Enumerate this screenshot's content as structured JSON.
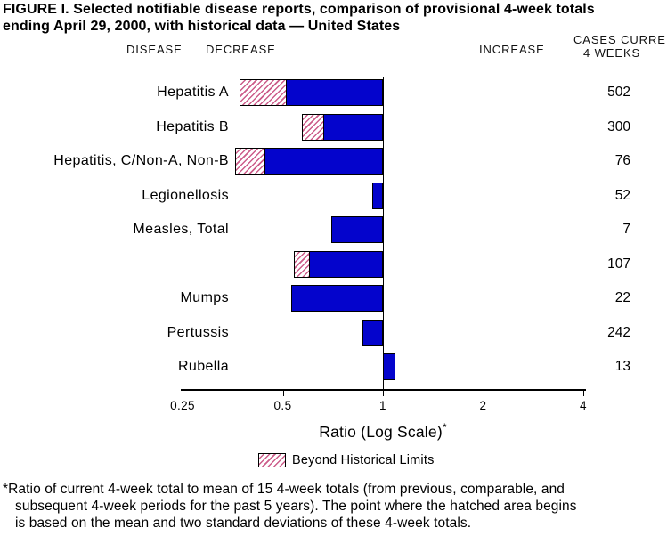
{
  "title": {
    "line1": "FIGURE I. Selected notifiable disease reports, comparison of provisional 4-week totals",
    "line2": "ending April 29, 2000, with historical data — United States"
  },
  "column_headers": {
    "disease": "DISEASE",
    "decrease": "DECREASE",
    "increase": "INCREASE",
    "cases_line1": "CASES CURRE",
    "cases_line2": "4 WEEKS"
  },
  "chart_data": {
    "type": "bar",
    "orientation": "horizontal",
    "x_scale": "log",
    "x_range": [
      0.25,
      4
    ],
    "baseline": 1,
    "x_ticks": [
      0.25,
      0.5,
      1,
      2,
      4
    ],
    "xlabel": "Ratio (Log Scale)",
    "xlabel_marker": "*",
    "legend": "Beyond Historical Limits",
    "bar_color": "#0404cc",
    "hatch_color": "#cc5c8a",
    "rows": [
      {
        "label": "Hepatitis A",
        "cases": "502",
        "ratio": 0.37,
        "beyond_limit_to": 0.51
      },
      {
        "label": "Hepatitis B",
        "cases": "300",
        "ratio": 0.57,
        "beyond_limit_to": 0.66
      },
      {
        "label": "Hepatitis, C/Non-A, Non-B",
        "cases": "76",
        "ratio": 0.36,
        "beyond_limit_to": 0.44
      },
      {
        "label": "Legionellosis",
        "cases": "52",
        "ratio": 0.93,
        "beyond_limit_to": null
      },
      {
        "label": "Measles, Total",
        "cases": "7",
        "ratio": 0.7,
        "beyond_limit_to": null
      },
      {
        "label": "",
        "cases": "107",
        "ratio": 0.54,
        "beyond_limit_to": 0.6
      },
      {
        "label": "Mumps",
        "cases": "22",
        "ratio": 0.53,
        "beyond_limit_to": null
      },
      {
        "label": "Pertussis",
        "cases": "242",
        "ratio": 0.87,
        "beyond_limit_to": null
      },
      {
        "label": "Rubella",
        "cases": "13",
        "ratio": 1.09,
        "beyond_limit_to": null
      }
    ]
  },
  "footnote": {
    "line1": "*Ratio of current 4-week total to mean of 15 4-week totals (from previous, comparable, and",
    "line2": "subsequent 4-week periods for the past 5 years). The point where the hatched area begins",
    "line3": "is based on the mean and two standard deviations of these 4-week totals."
  }
}
